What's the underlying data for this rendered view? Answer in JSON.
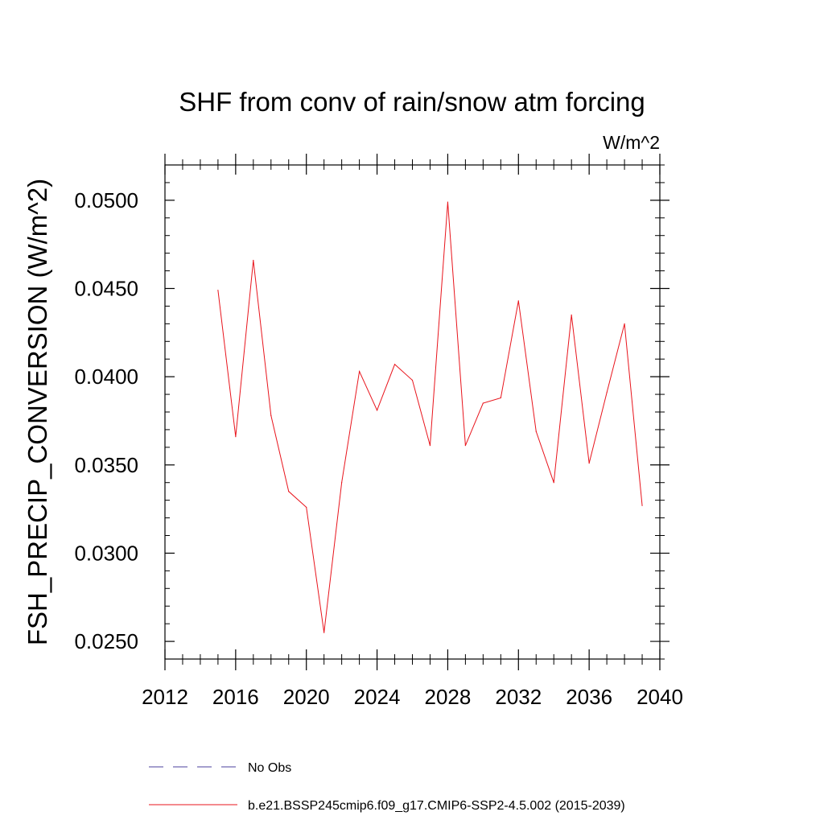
{
  "chart_data": {
    "type": "line",
    "title": "SHF from conv of rain/snow atm forcing",
    "units_label": "W/m^2",
    "ylabel": "FSH_PRECIP_CONVERSION  (W/m^2)",
    "xlabel": "",
    "xlim": [
      2012,
      2040
    ],
    "ylim": [
      0.024,
      0.052
    ],
    "x_ticks": [
      2012,
      2016,
      2020,
      2024,
      2028,
      2032,
      2036,
      2040
    ],
    "x_tick_labels": [
      "2012",
      "2016",
      "2020",
      "2024",
      "2028",
      "2032",
      "2036",
      "2040"
    ],
    "y_ticks": [
      0.025,
      0.03,
      0.035,
      0.04,
      0.045,
      0.05
    ],
    "y_tick_labels": [
      "0.0250",
      "0.0300",
      "0.0350",
      "0.0400",
      "0.0450",
      "0.0500"
    ],
    "grid": false,
    "legend_position": "bottom",
    "legend": [
      {
        "label": "No Obs",
        "color": "#4b3f9e",
        "dash": "dashed"
      },
      {
        "label": "b.e21.BSSP245cmip6.f09_g17.CMIP6-SSP2-4.5.002 (2015-2039)",
        "color": "#e8141c",
        "dash": "solid"
      }
    ],
    "series": [
      {
        "color": "#e8141c",
        "x": [
          2015,
          2016,
          2017,
          2018,
          2019,
          2020,
          2021,
          2022,
          2023,
          2024,
          2025,
          2026,
          2027,
          2028,
          2029,
          2030,
          2031,
          2032,
          2033,
          2034,
          2035,
          2036,
          2037,
          2038,
          2039
        ],
        "y": [
          0.0449,
          0.0366,
          0.0466,
          0.0378,
          0.0335,
          0.0326,
          0.0255,
          0.034,
          0.0403,
          0.0381,
          0.0407,
          0.0398,
          0.0361,
          0.0499,
          0.0361,
          0.0385,
          0.0388,
          0.0443,
          0.0369,
          0.034,
          0.0435,
          0.0351,
          0.0391,
          0.043,
          0.0327
        ]
      }
    ]
  }
}
